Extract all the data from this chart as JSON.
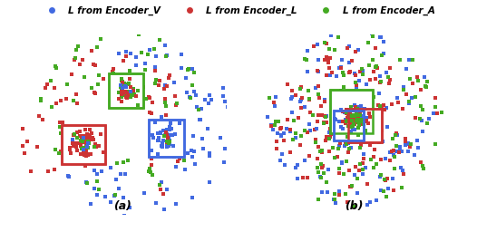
{
  "legend_labels": [
    "L from Encoder_V",
    "L from Encoder_L",
    "L from Encoder_A"
  ],
  "colors": {
    "blue": "#4169E1",
    "red": "#CC3333",
    "green": "#44AA22"
  },
  "subplot_labels": [
    "(a)",
    "(b)"
  ],
  "marker_size": 8,
  "marker": "s",
  "background": "#ffffff",
  "fig_width": 5.26,
  "fig_height": 2.56,
  "dpi": 100
}
